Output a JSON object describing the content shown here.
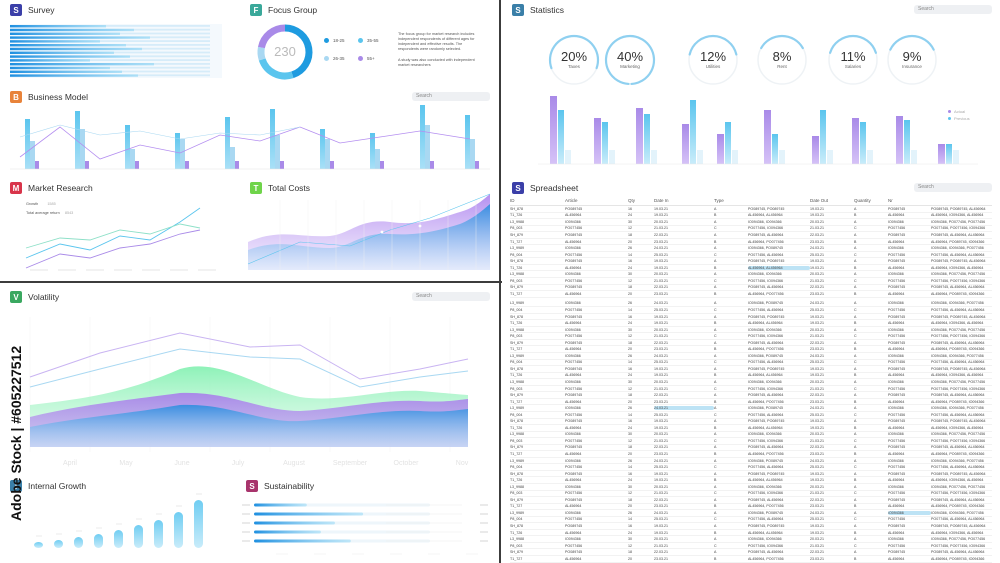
{
  "panels": {
    "survey": {
      "badge": "S",
      "title": "Survey",
      "color": "#3b3fa8"
    },
    "focus_group": {
      "badge": "F",
      "title": "Focus Group",
      "color": "#3aa89a",
      "center_value": "230",
      "legend": [
        {
          "label": "18-25",
          "color": "#1e9be0"
        },
        {
          "label": "35-55",
          "color": "#5bc5ee"
        },
        {
          "label": "26-35",
          "color": "#a9d8f2"
        },
        {
          "label": "55+",
          "color": "#a98ae8"
        }
      ],
      "text1": "The focus group for market research includes independent respondents of different ages for independent and effective results. The respondents were randomly selected.",
      "text2": "A study was also conducted with independent market researchers"
    },
    "business_model": {
      "badge": "B",
      "title": "Business Model",
      "color": "#e8833a",
      "search": "Search"
    },
    "market_research": {
      "badge": "M",
      "title": "Market Research",
      "color": "#d8344a",
      "legend": [
        {
          "label": "Growth",
          "value": "1585"
        },
        {
          "label": "Total average return",
          "value": "8543"
        }
      ]
    },
    "total_costs": {
      "badge": "T",
      "title": "Total Costs",
      "color": "#6fd44a"
    },
    "statistics": {
      "badge": "S",
      "title": "Statistics",
      "color": "#3a7fa8",
      "search": "Search",
      "gauges": [
        {
          "pct": "20%",
          "label": "Taxes",
          "value": 0.2
        },
        {
          "pct": "40%",
          "label": "Marketing",
          "value": 0.4
        },
        {
          "pct": "12%",
          "label": "Utilities",
          "value": 0.12
        },
        {
          "pct": "8%",
          "label": "Rent",
          "value": 0.08
        },
        {
          "pct": "11%",
          "label": "Salaries",
          "value": 0.11
        },
        {
          "pct": "9%",
          "label": "Insurance",
          "value": 0.09
        }
      ],
      "legend": [
        {
          "label": "Actual",
          "color": "#a98ae8"
        },
        {
          "label": "Previous",
          "color": "#5bc5ee"
        }
      ]
    },
    "spreadsheet": {
      "badge": "S",
      "title": "Spreadsheet",
      "color": "#3b3fa8",
      "search": "Search",
      "columns": [
        "ID",
        "Article",
        "Qty",
        "Date In",
        "Type",
        "",
        "Date Out",
        "Quantity",
        "Nr",
        ""
      ]
    },
    "volatility": {
      "badge": "V",
      "title": "Volatility",
      "color": "#3aa860",
      "search": "Search",
      "months": [
        "April",
        "May",
        "June",
        "July",
        "August",
        "September",
        "October",
        "Nov"
      ]
    },
    "internal_growth": {
      "badge": "I",
      "title": "Internal Growth",
      "color": "#3a7fa8"
    },
    "sustainability": {
      "badge": "S",
      "title": "Sustainability",
      "color": "#a8346c"
    }
  },
  "watermark": "Adobe Stock | #605227512",
  "sheet_templates": [
    [
      "SH_878",
      "PO089745",
      "16",
      "19.03.21",
      "A",
      "PO089745, PO089745",
      "19.03.21",
      "A",
      "PO089745",
      "PO089745, PO089745, AL456964"
    ],
    [
      "T1_726",
      "AL456964",
      "24",
      "19.03.21",
      "B",
      "AL456964, AL456964",
      "19.03.21",
      "B",
      "AL456964",
      "AL456964, IO094366, AL456964"
    ],
    [
      "L3_9988",
      "IO094366",
      "30",
      "20.03.21",
      "A",
      "IO094366, IO094366",
      "20.03.21",
      "A",
      "IO094366",
      "IO094366, PO077456, PO077456"
    ],
    [
      "P8_003",
      "PO077456",
      "12",
      "21.03.21",
      "C",
      "PO077456, IO094366",
      "21.03.21",
      "C",
      "PO077456",
      "PO077456, PO077456, IO094366"
    ],
    [
      "SH_879",
      "PO089745",
      "18",
      "22.03.21",
      "A",
      "PO089745, AL456964",
      "22.03.21",
      "A",
      "PO089745",
      "PO089745, AL456964, AL456964"
    ],
    [
      "T1_727",
      "AL456964",
      "20",
      "23.03.21",
      "B",
      "AL456964, PO077456",
      "23.03.21",
      "B",
      "AL456964",
      "AL456964, PO089745, IO094366"
    ],
    [
      "L3_9989",
      "IO094366",
      "26",
      "24.03.21",
      "A",
      "IO094366, PO089745",
      "24.03.21",
      "A",
      "IO094366",
      "IO094366, IO094366, PO077456"
    ],
    [
      "P8_004",
      "PO077456",
      "14",
      "25.03.21",
      "C",
      "PO077456, AL456964",
      "25.03.21",
      "C",
      "PO077456",
      "PO077456, AL456964, AL456964"
    ]
  ]
}
